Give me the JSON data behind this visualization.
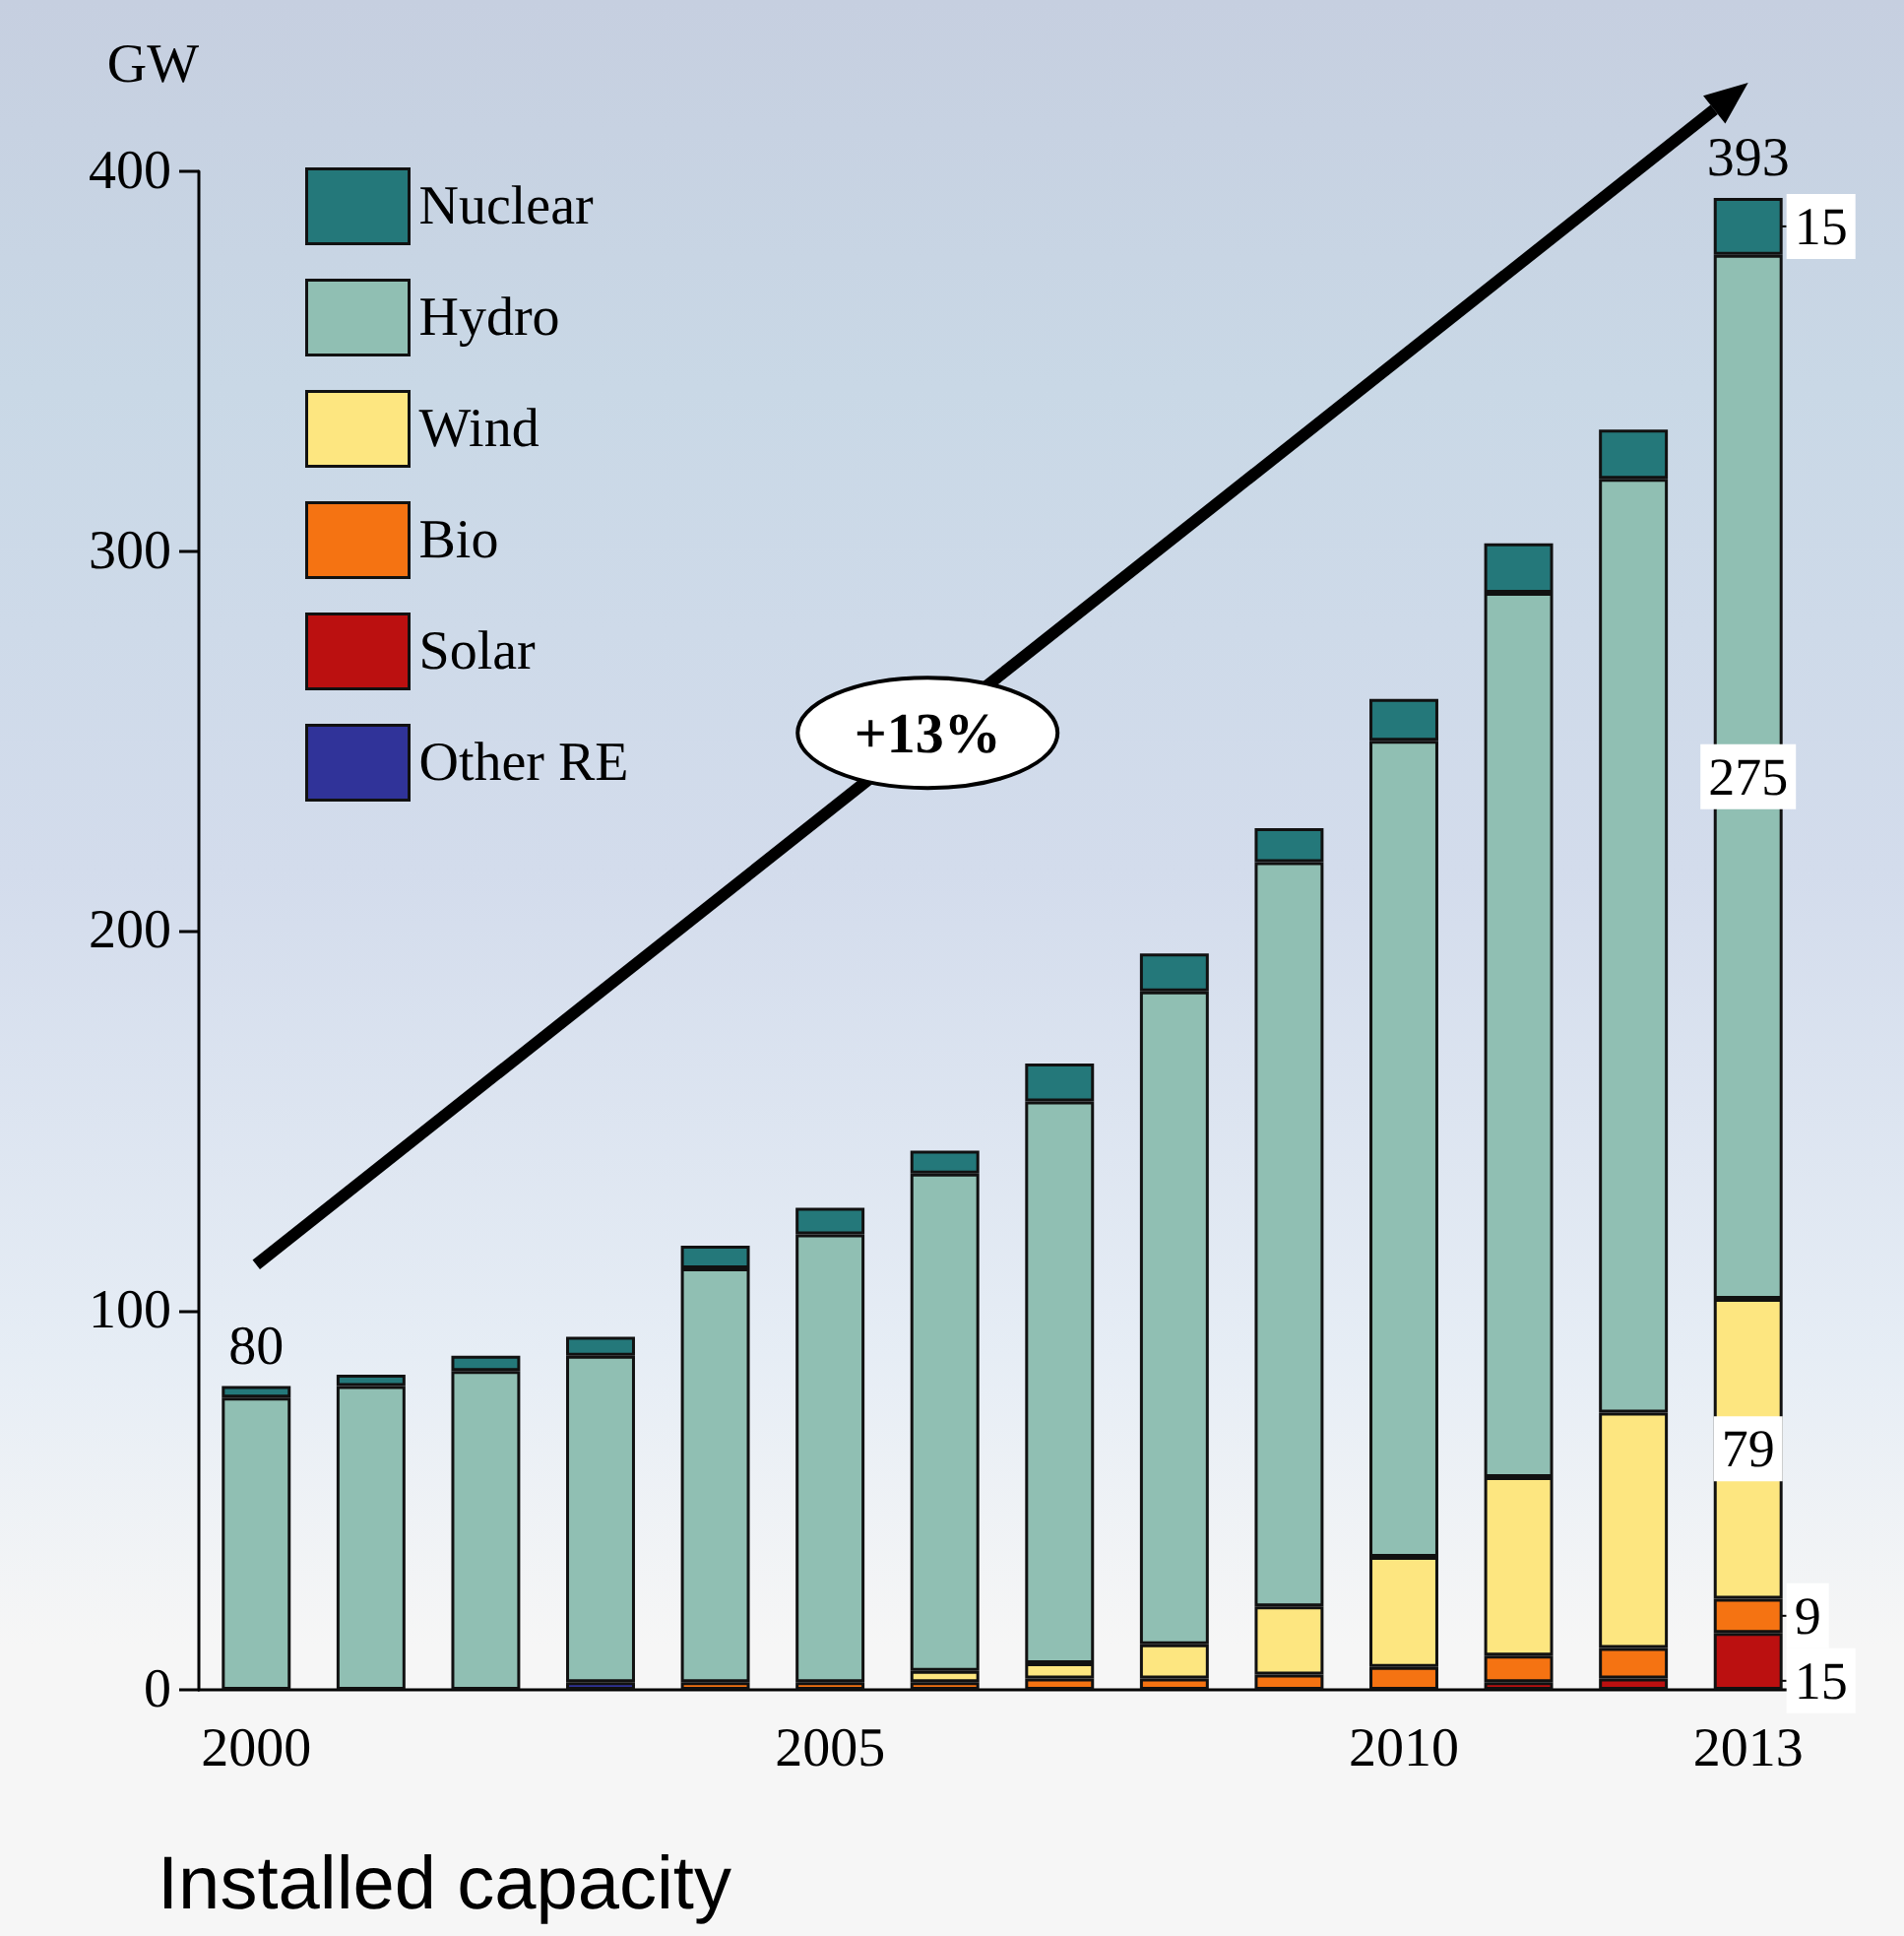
{
  "chart_data": {
    "type": "bar",
    "title": "Installed capacity",
    "ylabel": "GW",
    "stacked": true,
    "categories": [
      "2000",
      null,
      null,
      null,
      null,
      "2005",
      null,
      null,
      null,
      null,
      "2010",
      null,
      null,
      "2013"
    ],
    "series": [
      {
        "name": "Other RE",
        "color": "#303399",
        "values": [
          null,
          null,
          null,
          2,
          0,
          null,
          0,
          0,
          0,
          0,
          0,
          0,
          0,
          0
        ]
      },
      {
        "name": "Solar",
        "color": "#bb1010",
        "values": [
          0,
          0,
          0,
          0,
          0,
          0,
          0,
          0,
          0,
          0,
          0,
          2,
          3,
          15
        ],
        "value_labels": [
          null,
          null,
          null,
          null,
          null,
          null,
          null,
          null,
          null,
          null,
          null,
          null,
          null,
          "15"
        ]
      },
      {
        "name": "Bio",
        "color": "#f57312",
        "values": [
          0,
          0,
          0,
          0,
          2,
          2,
          2,
          3,
          3,
          4,
          6,
          7,
          8,
          9
        ],
        "value_labels": [
          null,
          null,
          null,
          null,
          null,
          null,
          null,
          null,
          null,
          null,
          null,
          null,
          null,
          "9"
        ]
      },
      {
        "name": "Wind",
        "color": "#fde680",
        "values": [
          0,
          0,
          0,
          0,
          0,
          0,
          3,
          4,
          9,
          18,
          29,
          47,
          62,
          79
        ],
        "value_labels": [
          null,
          null,
          null,
          null,
          null,
          null,
          null,
          null,
          null,
          null,
          null,
          null,
          null,
          "79"
        ]
      },
      {
        "name": "Hydro",
        "color": "#90bfb3",
        "values": [
          77,
          80,
          84,
          86,
          109,
          118,
          131,
          148,
          172,
          196,
          215,
          233,
          246,
          275
        ],
        "value_labels": [
          null,
          null,
          null,
          null,
          null,
          null,
          null,
          null,
          null,
          null,
          null,
          null,
          null,
          "275"
        ]
      },
      {
        "name": "Nuclear",
        "color": "#24787a",
        "values": [
          3,
          3,
          4,
          5,
          6,
          7,
          6,
          10,
          10,
          9,
          11,
          13,
          13,
          15
        ],
        "value_labels": [
          null,
          null,
          null,
          null,
          null,
          null,
          null,
          null,
          null,
          null,
          null,
          null,
          null,
          "15"
        ]
      }
    ],
    "totals": [
      "80",
      null,
      null,
      null,
      null,
      null,
      null,
      null,
      null,
      null,
      null,
      null,
      null,
      "393"
    ],
    "ylim": [
      0,
      400
    ],
    "yticks": [
      0,
      100,
      200,
      300,
      400
    ],
    "grid": false,
    "legend": "top left",
    "annotations": [
      "+13%"
    ]
  }
}
